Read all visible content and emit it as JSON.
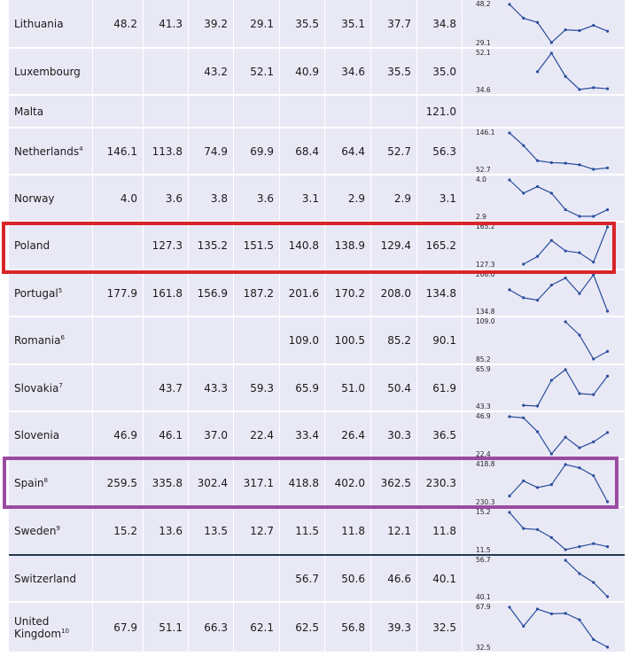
{
  "highlight_colors": {
    "poland": "#d8252a",
    "spain": "#9a4ba1"
  },
  "line_color": "#2a4d9c",
  "chart_data": {
    "type": "table",
    "rows": [
      {
        "country": "Lithuania",
        "note": "",
        "values": [
          48.2,
          41.3,
          39.2,
          29.1,
          35.5,
          35.1,
          37.7,
          34.8
        ],
        "cells": [
          "48.2",
          "41.3",
          "39.2",
          "29.1",
          "35.5",
          "35.1",
          "37.7",
          "34.8"
        ],
        "spark_max": "48.2",
        "spark_min": "29.1"
      },
      {
        "country": "Luxembourg",
        "note": "",
        "values": [
          null,
          null,
          43.2,
          52.1,
          40.9,
          34.6,
          35.5,
          35.0
        ],
        "cells": [
          "",
          "",
          "43.2",
          "52.1",
          "40.9",
          "34.6",
          "35.5",
          "35.0"
        ],
        "spark_max": "52.1",
        "spark_min": "34.6"
      },
      {
        "country": "Malta",
        "note": "",
        "values": [
          null,
          null,
          null,
          null,
          null,
          null,
          null,
          121.0
        ],
        "cells": [
          "",
          "",
          "",
          "",
          "",
          "",
          "",
          "121.0"
        ],
        "spark_max": "",
        "spark_min": ""
      },
      {
        "country": "Netherlands",
        "note": "4",
        "values": [
          146.1,
          113.8,
          74.9,
          69.9,
          68.4,
          64.4,
          52.7,
          56.3
        ],
        "cells": [
          "146.1",
          "113.8",
          "74.9",
          "69.9",
          "68.4",
          "64.4",
          "52.7",
          "56.3"
        ],
        "spark_max": "146.1",
        "spark_min": "52.7"
      },
      {
        "country": "Norway",
        "note": "",
        "values": [
          4.0,
          3.6,
          3.8,
          3.6,
          3.1,
          2.9,
          2.9,
          3.1
        ],
        "cells": [
          "4.0",
          "3.6",
          "3.8",
          "3.6",
          "3.1",
          "2.9",
          "2.9",
          "3.1"
        ],
        "spark_max": "4.0",
        "spark_min": "2.9"
      },
      {
        "country": "Poland",
        "note": "",
        "values": [
          null,
          127.3,
          135.2,
          151.5,
          140.8,
          138.9,
          129.4,
          165.2
        ],
        "cells": [
          "",
          "127.3",
          "135.2",
          "151.5",
          "140.8",
          "138.9",
          "129.4",
          "165.2"
        ],
        "spark_max": "165.2",
        "spark_min": "127.3"
      },
      {
        "country": "Portugal",
        "note": "5",
        "values": [
          177.9,
          161.8,
          156.9,
          187.2,
          201.6,
          170.2,
          208.0,
          134.8
        ],
        "cells": [
          "177.9",
          "161.8",
          "156.9",
          "187.2",
          "201.6",
          "170.2",
          "208.0",
          "134.8"
        ],
        "spark_max": "208.0",
        "spark_min": "134.8"
      },
      {
        "country": "Romania",
        "note": "6",
        "values": [
          null,
          null,
          null,
          null,
          109.0,
          100.5,
          85.2,
          90.1
        ],
        "cells": [
          "",
          "",
          "",
          "",
          "109.0",
          "100.5",
          "85.2",
          "90.1"
        ],
        "spark_max": "109.0",
        "spark_min": "85.2"
      },
      {
        "country": "Slovakia",
        "note": "7",
        "values": [
          null,
          43.7,
          43.3,
          59.3,
          65.9,
          51.0,
          50.4,
          61.9
        ],
        "cells": [
          "",
          "43.7",
          "43.3",
          "59.3",
          "65.9",
          "51.0",
          "50.4",
          "61.9"
        ],
        "spark_max": "65.9",
        "spark_min": "43.3"
      },
      {
        "country": "Slovenia",
        "note": "",
        "values": [
          46.9,
          46.1,
          37.0,
          22.4,
          33.4,
          26.4,
          30.3,
          36.5
        ],
        "cells": [
          "46.9",
          "46.1",
          "37.0",
          "22.4",
          "33.4",
          "26.4",
          "30.3",
          "36.5"
        ],
        "spark_max": "46.9",
        "spark_min": "22.4"
      },
      {
        "country": "Spain",
        "note": "8",
        "values": [
          259.5,
          335.8,
          302.4,
          317.1,
          418.8,
          402.0,
          362.5,
          230.3
        ],
        "cells": [
          "259.5",
          "335.8",
          "302.4",
          "317.1",
          "418.8",
          "402.0",
          "362.5",
          "230.3"
        ],
        "spark_max": "418.8",
        "spark_min": "230.3"
      },
      {
        "country": "Sweden",
        "note": "9",
        "values": [
          15.2,
          13.6,
          13.5,
          12.7,
          11.5,
          11.8,
          12.1,
          11.8
        ],
        "cells": [
          "15.2",
          "13.6",
          "13.5",
          "12.7",
          "11.5",
          "11.8",
          "12.1",
          "11.8"
        ],
        "spark_max": "15.2",
        "spark_min": "11.5"
      },
      {
        "country": "Switzerland",
        "note": "",
        "values": [
          null,
          null,
          null,
          null,
          56.7,
          50.6,
          46.6,
          40.1
        ],
        "cells": [
          "",
          "",
          "",
          "",
          "56.7",
          "50.6",
          "46.6",
          "40.1"
        ],
        "spark_max": "56.7",
        "spark_min": "40.1"
      },
      {
        "country": "United Kingdom",
        "note": "10",
        "values": [
          67.9,
          51.1,
          66.3,
          62.1,
          62.5,
          56.8,
          39.3,
          32.5
        ],
        "cells": [
          "67.9",
          "51.1",
          "66.3",
          "62.1",
          "62.5",
          "56.8",
          "39.3",
          "32.5"
        ],
        "spark_max": "67.9",
        "spark_min": "32.5"
      }
    ]
  }
}
